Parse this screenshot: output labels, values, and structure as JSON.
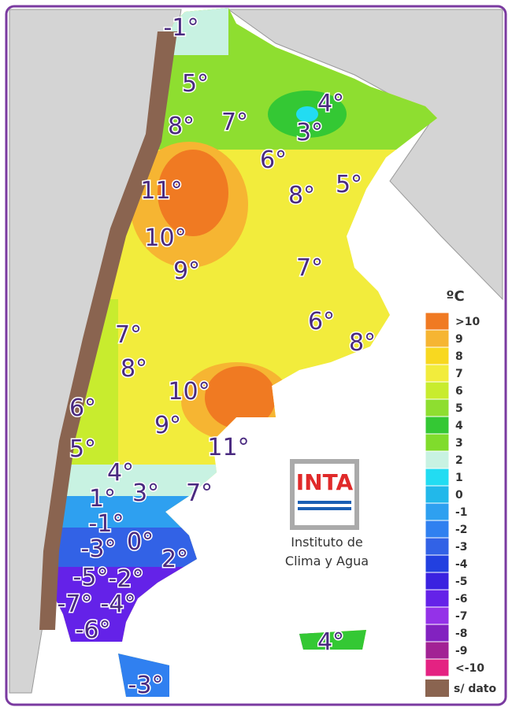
{
  "map_labels": [
    "-1°",
    "5°",
    "4°",
    "8°",
    "7°",
    "3°",
    "6°",
    "11°",
    "8°",
    "5°",
    "10°",
    "9°",
    "7°",
    "7°",
    "6°",
    "8°",
    "8°",
    "10°",
    "6°",
    "9°",
    "5°",
    "11°",
    "4°",
    "1°",
    "3°",
    "7°",
    "-1°",
    "-3°",
    "0°",
    "2°",
    "-5°",
    "-2°",
    "-7°",
    "-4°",
    "-6°",
    "4°",
    "-3°"
  ],
  "legend": {
    "title": "ºC",
    "items": [
      {
        "label": ">10",
        "color": "#f07a22"
      },
      {
        "label": "9",
        "color": "#f6b532"
      },
      {
        "label": "8",
        "color": "#f8d820"
      },
      {
        "label": "7",
        "color": "#f2ec3c"
      },
      {
        "label": "6",
        "color": "#c8ec2e"
      },
      {
        "label": "5",
        "color": "#8ede30"
      },
      {
        "label": "4",
        "color": "#34c834"
      },
      {
        "label": "3",
        "color": "#80dc2c"
      },
      {
        "label": "2",
        "color": "#c8f2e2"
      },
      {
        "label": "1",
        "color": "#22dcf2"
      },
      {
        "label": "0",
        "color": "#22b8ea"
      },
      {
        "label": "-1",
        "color": "#2ea0f0"
      },
      {
        "label": "-2",
        "color": "#3080f0"
      },
      {
        "label": "-3",
        "color": "#3262e6"
      },
      {
        "label": "-4",
        "color": "#2240e0"
      },
      {
        "label": "-5",
        "color": "#3a22e0"
      },
      {
        "label": "-6",
        "color": "#6422e8"
      },
      {
        "label": "-7",
        "color": "#9432e8"
      },
      {
        "label": "-8",
        "color": "#8222c0"
      },
      {
        "label": "-9",
        "color": "#a22294"
      },
      {
        "label": "<-10",
        "color": "#e42282"
      }
    ],
    "no_data": "s/ dato"
  },
  "logo": {
    "name": "INTA",
    "line1": "Instituto de",
    "line2": "Clima y Agua"
  }
}
